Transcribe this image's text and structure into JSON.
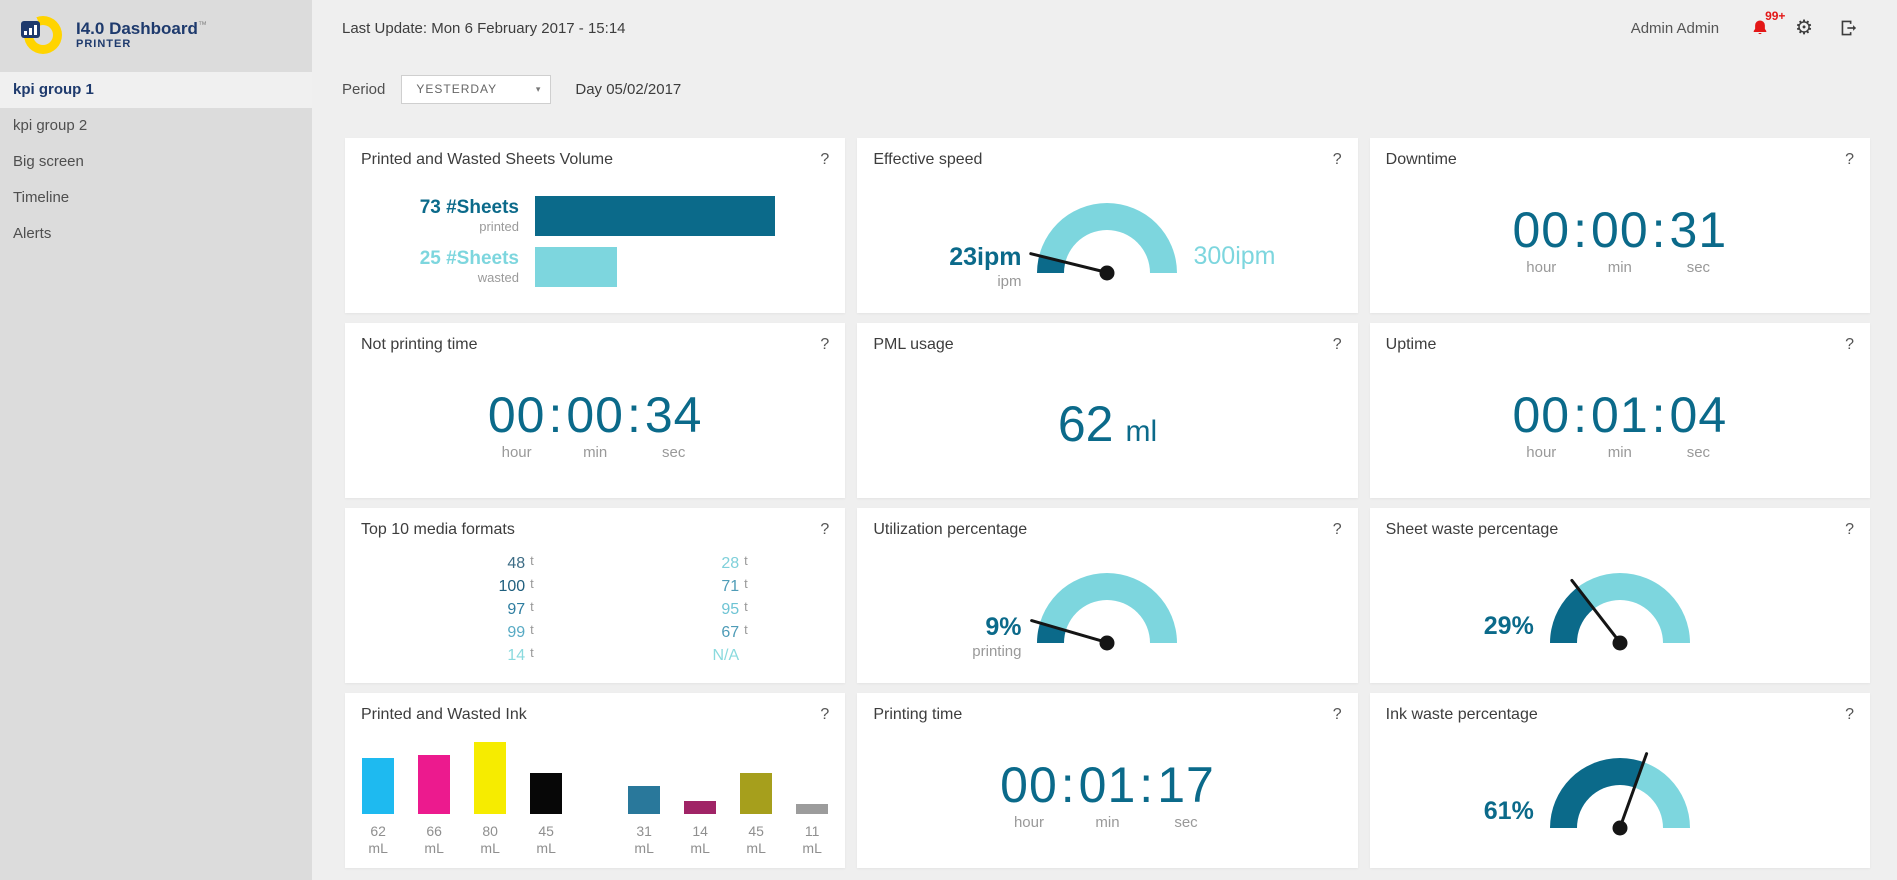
{
  "brand": {
    "title": "I4.0 Dashboard",
    "tm": "™",
    "subtitle": "PRINTER"
  },
  "sidebar": {
    "items": [
      {
        "label": "kpi group 1",
        "active": true
      },
      {
        "label": "kpi group 2",
        "active": false
      },
      {
        "label": "Big screen",
        "active": false
      },
      {
        "label": "Timeline",
        "active": false
      },
      {
        "label": "Alerts",
        "active": false
      }
    ]
  },
  "header": {
    "last_update": "Last Update: Mon 6 February 2017 - 15:14",
    "user": "Admin Admin",
    "notifications_badge": "99+"
  },
  "filters": {
    "period_label": "Period",
    "period_value": "YESTERDAY",
    "caret": "▾",
    "day_label": "Day 05/02/2017"
  },
  "help_glyph": "?",
  "colors": {
    "accent_dark": "#0b6a8a",
    "accent_light": "#7dd6de",
    "needle": "#151515"
  },
  "cards": [
    {
      "id": "sheets-volume",
      "type": "hbar",
      "title": "Printed and Wasted Sheets Volume",
      "rows": [
        {
          "value": "73",
          "unit": "#Sheets",
          "sublabel": "printed",
          "color": "#0b6a8a",
          "pct": 100
        },
        {
          "value": "25",
          "unit": "#Sheets",
          "sublabel": "wasted",
          "color": "#7dd6de",
          "pct": 34
        }
      ]
    },
    {
      "id": "effective-speed",
      "type": "gauge",
      "title": "Effective speed",
      "value_label": "23ipm",
      "sub_label": "ipm",
      "max_label": "300ipm",
      "percent": 7.7
    },
    {
      "id": "downtime",
      "type": "time",
      "title": "Downtime",
      "segments": [
        {
          "value": "00",
          "label": "hour"
        },
        {
          "value": "00",
          "label": "min"
        },
        {
          "value": "31",
          "label": "sec"
        }
      ]
    },
    {
      "id": "not-printing-time",
      "type": "time",
      "title": "Not printing time",
      "segments": [
        {
          "value": "00",
          "label": "hour"
        },
        {
          "value": "00",
          "label": "min"
        },
        {
          "value": "34",
          "label": "sec"
        }
      ]
    },
    {
      "id": "pml-usage",
      "type": "value_unit",
      "title": "PML usage",
      "value": "62",
      "unit": "ml"
    },
    {
      "id": "uptime",
      "type": "time",
      "title": "Uptime",
      "segments": [
        {
          "value": "00",
          "label": "hour"
        },
        {
          "value": "01",
          "label": "min"
        },
        {
          "value": "04",
          "label": "sec"
        }
      ]
    },
    {
      "id": "top-media-formats",
      "type": "list",
      "title": "Top 10 media formats",
      "left": [
        {
          "value": "48",
          "unit": "t",
          "color": "#3d6c85"
        },
        {
          "value": "100",
          "unit": "t",
          "color": "#1f5f7e"
        },
        {
          "value": "97",
          "unit": "t",
          "color": "#2d7da0"
        },
        {
          "value": "99",
          "unit": "t",
          "color": "#57aac4"
        },
        {
          "value": "14",
          "unit": "t",
          "color": "#8adade"
        }
      ],
      "right": [
        {
          "value": "28",
          "unit": "t",
          "color": "#7fd0da"
        },
        {
          "value": "71",
          "unit": "t",
          "color": "#4f9cb7"
        },
        {
          "value": "95",
          "unit": "t",
          "color": "#6ec4d4"
        },
        {
          "value": "67",
          "unit": "t",
          "color": "#4f9cb7"
        },
        {
          "value": "N/A",
          "unit": "",
          "color": "#8adade"
        }
      ]
    },
    {
      "id": "utilization",
      "type": "gauge",
      "title": "Utilization percentage",
      "value_label": "9%",
      "sub_label": "printing",
      "max_label": "",
      "percent": 9
    },
    {
      "id": "sheet-waste",
      "type": "gauge",
      "title": "Sheet waste percentage",
      "value_label": "29%",
      "sub_label": "",
      "max_label": "",
      "percent": 29
    },
    {
      "id": "ink-volume",
      "type": "vbar",
      "title": "Printed and Wasted Ink",
      "max": 80,
      "bars": [
        {
          "value": 62,
          "label": "62",
          "unit": "mL",
          "color": "#1ebaf0",
          "gap": false
        },
        {
          "value": 66,
          "label": "66",
          "unit": "mL",
          "color": "#ec1a8e",
          "gap": false
        },
        {
          "value": 80,
          "label": "80",
          "unit": "mL",
          "color": "#f6ec00",
          "gap": false
        },
        {
          "value": 45,
          "label": "45",
          "unit": "mL",
          "color": "#070707",
          "gap": false
        },
        {
          "value": 31,
          "label": "31",
          "unit": "mL",
          "color": "#29789b",
          "gap": true
        },
        {
          "value": 14,
          "label": "14",
          "unit": "mL",
          "color": "#a02466",
          "gap": false
        },
        {
          "value": 45,
          "label": "45",
          "unit": "mL",
          "color": "#a69f1c",
          "gap": false
        },
        {
          "value": 11,
          "label": "11",
          "unit": "mL",
          "color": "#9c9c9c",
          "gap": false
        }
      ]
    },
    {
      "id": "printing-time",
      "type": "time",
      "title": "Printing time",
      "segments": [
        {
          "value": "00",
          "label": "hour"
        },
        {
          "value": "01",
          "label": "min"
        },
        {
          "value": "17",
          "label": "sec"
        }
      ]
    },
    {
      "id": "ink-waste",
      "type": "gauge",
      "title": "Ink waste percentage",
      "value_label": "61%",
      "sub_label": "",
      "max_label": "",
      "percent": 61
    }
  ]
}
